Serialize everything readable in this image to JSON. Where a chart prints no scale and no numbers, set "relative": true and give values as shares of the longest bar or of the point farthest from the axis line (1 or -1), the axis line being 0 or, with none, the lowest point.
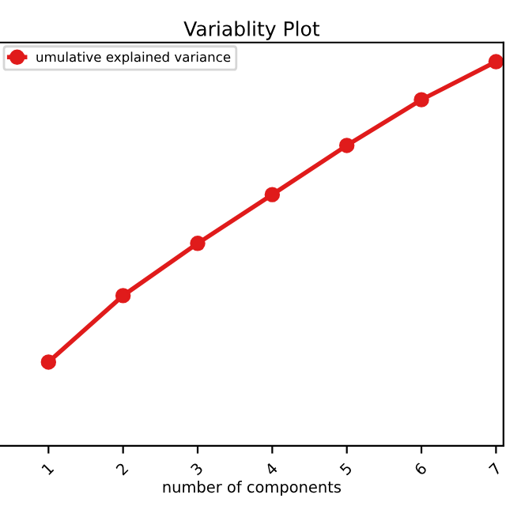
{
  "chart_data": {
    "type": "line",
    "title": "Variablity Plot",
    "xlabel": "number of components",
    "x": [
      1,
      2,
      3,
      4,
      5,
      6,
      7
    ],
    "xlim": [
      0.35,
      7.1
    ],
    "xticks": [
      1,
      2,
      3,
      4,
      5,
      6,
      7
    ],
    "relative": true,
    "legend": "top left",
    "marker": "circle",
    "line_style": "solid",
    "grid": false,
    "series": [
      {
        "name": "umulative explained variance",
        "color": "#e01b1b",
        "values": [
          0.218,
          0.391,
          0.527,
          0.654,
          0.782,
          0.901,
          1
        ]
      }
    ]
  }
}
